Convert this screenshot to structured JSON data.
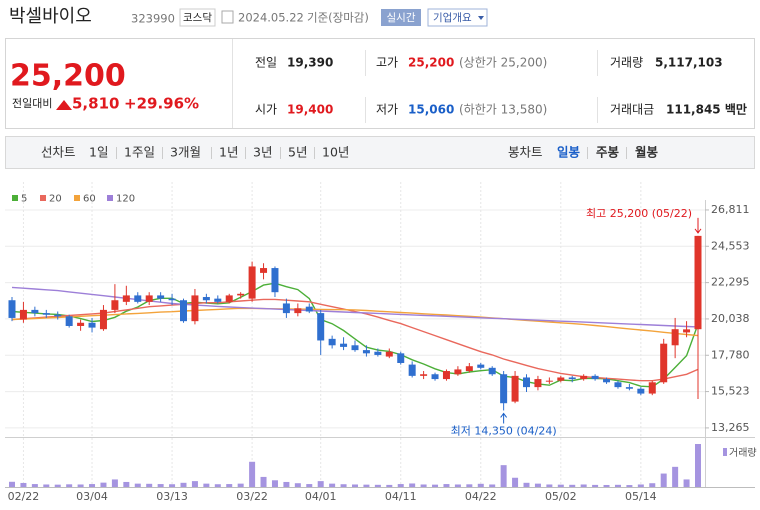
{
  "header": {
    "name": "박셀바이오",
    "code": "323990",
    "market": "코스닥",
    "date": "2024.05.22",
    "basis": "기준(장마감)",
    "realtime": "실시간",
    "company_info": "기업개요"
  },
  "quote": {
    "price": "25,200",
    "change_label": "전일대비",
    "change": "5,810",
    "change_rate": "+29.96%",
    "items": [
      {
        "label": "전일",
        "value": "19,390"
      },
      {
        "label": "고가",
        "value": "25,200",
        "note": "(상한가 25,200)"
      },
      {
        "label": "거래량",
        "value": "5,117,103"
      },
      {
        "label": "시가",
        "value": "19,400"
      },
      {
        "label": "저가",
        "value": "15,060",
        "note": "(하한가 13,580)"
      },
      {
        "label": "거래대금",
        "value": "111,845 백만"
      }
    ]
  },
  "tabs": {
    "line_chart": "선차트",
    "line_periods": [
      "1일",
      "1주일",
      "3개월",
      "1년",
      "3년",
      "5년",
      "10년"
    ],
    "candle_chart": "봉차트",
    "candle_periods": [
      "일봉",
      "주봉",
      "월봉"
    ]
  },
  "chart_data": {
    "type": "candlestick",
    "x": [
      null,
      "02/22",
      null,
      null,
      null,
      null,
      null,
      "03/04",
      null,
      null,
      null,
      null,
      null,
      null,
      "03/13",
      null,
      null,
      null,
      null,
      null,
      null,
      "03/22",
      null,
      null,
      null,
      null,
      null,
      "04/01",
      null,
      null,
      null,
      null,
      null,
      null,
      "04/11",
      null,
      null,
      null,
      null,
      null,
      null,
      "04/22",
      null,
      null,
      null,
      null,
      null,
      null,
      "05/02",
      null,
      null,
      null,
      null,
      null,
      null,
      "05/14",
      null,
      null,
      null,
      null,
      null
    ],
    "open": [
      21200,
      20000,
      20600,
      20400,
      20300,
      20200,
      19600,
      19800,
      19400,
      20600,
      21100,
      21500,
      21100,
      21500,
      21300,
      21200,
      19900,
      21400,
      21300,
      21100,
      21500,
      21300,
      22900,
      23200,
      21000,
      20400,
      20800,
      20400,
      18800,
      18500,
      18400,
      18100,
      18000,
      17700,
      17900,
      17200,
      16500,
      16600,
      16300,
      16600,
      16800,
      17200,
      17000,
      16600,
      14900,
      16400,
      15800,
      16200,
      16200,
      16400,
      16300,
      16500,
      16300,
      16100,
      15800,
      15700,
      15400,
      16100,
      18400,
      19200,
      19400
    ],
    "high": [
      21400,
      21100,
      20800,
      20600,
      20500,
      20300,
      20000,
      20100,
      20900,
      22200,
      22100,
      21700,
      21700,
      21700,
      21600,
      21300,
      21900,
      21600,
      21500,
      21600,
      21700,
      23600,
      23500,
      23300,
      21300,
      21000,
      21000,
      20600,
      19000,
      18900,
      18700,
      18400,
      18200,
      18200,
      18000,
      17400,
      16800,
      16700,
      16900,
      17100,
      17300,
      17300,
      17100,
      16800,
      16800,
      16600,
      16500,
      16400,
      16500,
      16500,
      16600,
      16600,
      16400,
      16200,
      16000,
      15800,
      16200,
      18800,
      20100,
      19900,
      25200
    ],
    "low": [
      19900,
      19800,
      20200,
      20100,
      20000,
      19500,
      19300,
      19200,
      19300,
      20400,
      20900,
      21000,
      20900,
      21100,
      20900,
      19800,
      19700,
      21000,
      21000,
      21000,
      21300,
      21100,
      22500,
      21400,
      20100,
      20200,
      20400,
      17800,
      18200,
      18100,
      18000,
      17700,
      17700,
      17600,
      17200,
      16400,
      16300,
      16200,
      16200,
      16500,
      16700,
      16900,
      16500,
      14350,
      14800,
      15500,
      15600,
      16000,
      16100,
      16100,
      16200,
      16200,
      16000,
      15700,
      15600,
      15300,
      15300,
      16000,
      17600,
      18900,
      15060
    ],
    "close": [
      20100,
      20600,
      20400,
      20300,
      20200,
      19600,
      19800,
      19500,
      20600,
      21200,
      21500,
      21100,
      21500,
      21300,
      21200,
      19900,
      21500,
      21200,
      21100,
      21500,
      21600,
      23300,
      23200,
      21700,
      20400,
      20700,
      20500,
      18700,
      18400,
      18300,
      18100,
      17900,
      17800,
      18000,
      17300,
      16500,
      16600,
      16300,
      16800,
      16900,
      17100,
      17000,
      16600,
      14800,
      16500,
      15800,
      16300,
      16200,
      16400,
      16300,
      16500,
      16300,
      16100,
      15800,
      15700,
      15400,
      16100,
      18500,
      19400,
      19390,
      25200
    ],
    "volume": [
      620000,
      480000,
      350000,
      300000,
      280000,
      320000,
      300000,
      350000,
      520000,
      900000,
      600000,
      400000,
      380000,
      350000,
      330000,
      500000,
      700000,
      400000,
      330000,
      350000,
      400000,
      3000000,
      1200000,
      800000,
      600000,
      450000,
      350000,
      700000,
      400000,
      330000,
      300000,
      280000,
      260000,
      250000,
      350000,
      420000,
      300000,
      280000,
      350000,
      300000,
      320000,
      380000,
      300000,
      2600000,
      1100000,
      500000,
      400000,
      300000,
      280000,
      260000,
      300000,
      250000,
      240000,
      260000,
      230000,
      300000,
      450000,
      1600000,
      2400000,
      900000,
      5117103
    ],
    "volume_label": "거래량",
    "volume_color": "#a594e0",
    "up_color": "#e0352b",
    "down_color": "#2f6fcf",
    "series": [
      {
        "name": "5",
        "color": "#4caf38",
        "values": [
          20500,
          20450,
          20400,
          20350,
          20320,
          20220,
          20060,
          19880,
          19940,
          20140,
          20520,
          20780,
          21180,
          21320,
          21320,
          21000,
          21080,
          21020,
          20980,
          21040,
          21380,
          21740,
          22140,
          22260,
          22040,
          21860,
          21300,
          20000,
          19740,
          19320,
          18800,
          18280,
          18100,
          18020,
          17820,
          17500,
          17240,
          16940,
          16700,
          16620,
          16740,
          16820,
          16880,
          16480,
          16400,
          16140,
          16000,
          15920,
          16240,
          16200,
          16340,
          16340,
          16320,
          16200,
          16080,
          15860,
          15820,
          16300,
          17020,
          17760,
          19720
        ]
      },
      {
        "name": "20",
        "color": "#e9685c",
        "values": [
          20000,
          20050,
          20100,
          20150,
          20200,
          20250,
          20300,
          20350,
          20400,
          20500,
          20600,
          20700,
          20800,
          20850,
          20900,
          20950,
          21000,
          21050,
          21050,
          21100,
          21150,
          21200,
          21250,
          21250,
          21200,
          21150,
          21100,
          20950,
          20800,
          20650,
          20500,
          20350,
          20150,
          19950,
          19750,
          19500,
          19250,
          19000,
          18750,
          18500,
          18250,
          18000,
          17800,
          17550,
          17350,
          17150,
          16950,
          16800,
          16650,
          16550,
          16450,
          16400,
          16350,
          16300,
          16250,
          16200,
          16200,
          16300,
          16450,
          16600,
          16900
        ]
      },
      {
        "name": "60",
        "color": "#f3a33b",
        "values": [
          20000,
          20030,
          20060,
          20100,
          20130,
          20170,
          20200,
          20240,
          20270,
          20310,
          20350,
          20380,
          20420,
          20460,
          20490,
          20530,
          20560,
          20600,
          20630,
          20670,
          20700,
          20690,
          20680,
          20670,
          20660,
          20650,
          20640,
          20630,
          20620,
          20610,
          20600,
          20560,
          20520,
          20480,
          20440,
          20400,
          20360,
          20320,
          20280,
          20240,
          20200,
          20150,
          20100,
          20050,
          20000,
          19950,
          19900,
          19850,
          19800,
          19750,
          19700,
          19630,
          19560,
          19490,
          19420,
          19350,
          19280,
          19210,
          19140,
          19070,
          19000
        ]
      },
      {
        "name": "120",
        "color": "#9d7fd8",
        "values": [
          22000,
          21950,
          21900,
          21850,
          21800,
          21720,
          21640,
          21560,
          21480,
          21400,
          21320,
          21240,
          21160,
          21080,
          21000,
          20950,
          20900,
          20860,
          20820,
          20780,
          20740,
          20710,
          20680,
          20650,
          20620,
          20590,
          20560,
          20530,
          20500,
          20470,
          20440,
          20410,
          20380,
          20350,
          20320,
          20290,
          20260,
          20230,
          20200,
          20170,
          20140,
          20110,
          20080,
          20050,
          20020,
          19990,
          19960,
          19930,
          19900,
          19870,
          19840,
          19810,
          19780,
          19750,
          19720,
          19690,
          19660,
          19630,
          19600,
          19570,
          19540
        ]
      }
    ],
    "ylim": [
      12700,
      27430
    ],
    "yticks": [
      {
        "value": 26811,
        "label": "26,811"
      },
      {
        "value": 24553,
        "label": "24,553"
      },
      {
        "value": 22295,
        "label": "22,295"
      },
      {
        "value": 20038,
        "label": "20,038"
      },
      {
        "value": 17780,
        "label": "17,780"
      },
      {
        "value": 15523,
        "label": "15,523"
      },
      {
        "value": 13265,
        "label": "13,265"
      }
    ],
    "grid": true,
    "annotations": [
      "최고 25,200 (05/22)",
      "최저 14,350 (04/24)"
    ]
  }
}
